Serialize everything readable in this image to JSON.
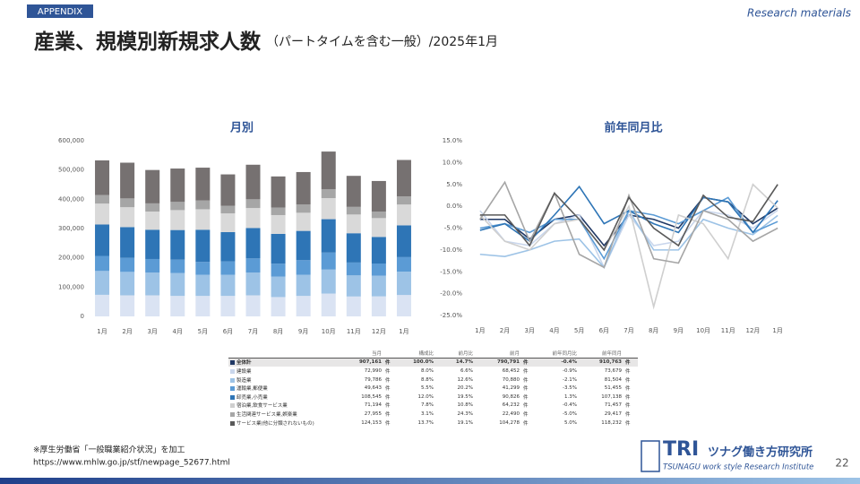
{
  "header": {
    "tag": "APPENDIX",
    "source": "Research materials",
    "title": "産業、規模別新規求人数",
    "subtitle": "（パートタイムを含む一般）/2025年1月"
  },
  "chart_data": [
    {
      "type": "bar",
      "stacked": true,
      "title": "月別",
      "categories": [
        "1月",
        "2月",
        "3月",
        "4月",
        "5月",
        "6月",
        "7月",
        "8月",
        "9月",
        "10月",
        "11月",
        "12月",
        "1月"
      ],
      "series": [
        {
          "color": "#dae3f3",
          "values": [
            73679,
            72000,
            72000,
            70000,
            70000,
            70000,
            72000,
            66000,
            70000,
            78000,
            68000,
            68452,
            72990
          ]
        },
        {
          "color": "#9dc3e6",
          "values": [
            81504,
            80000,
            78000,
            78000,
            72000,
            72000,
            78000,
            70000,
            72000,
            82000,
            72000,
            70880,
            79786
          ]
        },
        {
          "color": "#5b9bd5",
          "values": [
            51455,
            48000,
            46000,
            46000,
            44000,
            46000,
            48000,
            44000,
            50000,
            58000,
            44000,
            41299,
            49643
          ]
        },
        {
          "color": "#2e75b6",
          "values": [
            107138,
            105000,
            100000,
            101000,
            110000,
            100000,
            104000,
            102000,
            100000,
            114000,
            100000,
            90826,
            108545
          ]
        },
        {
          "color": "#d9d9d9",
          "values": [
            71457,
            68000,
            62000,
            68000,
            70000,
            64000,
            68000,
            64000,
            62000,
            72000,
            64000,
            64232,
            71194
          ]
        },
        {
          "color": "#a6a6a6",
          "values": [
            29417,
            30000,
            28000,
            28000,
            30000,
            26000,
            30000,
            26000,
            28000,
            30000,
            26000,
            22490,
            27955
          ]
        },
        {
          "color": "#767171",
          "values": [
            118232,
            122000,
            114000,
            114000,
            112000,
            107000,
            118000,
            106000,
            111000,
            129000,
            106000,
            104278,
            124153
          ]
        }
      ],
      "ylim": [
        0,
        600000
      ],
      "yticks": [
        0,
        {
          "value": 100000,
          "label": "100,000"
        },
        {
          "value": 200000,
          "label": "200,000"
        },
        {
          "value": 300000,
          "label": "300,000"
        },
        {
          "value": 400000,
          "label": "400,000"
        },
        {
          "value": 500000,
          "label": "500,000"
        },
        {
          "value": 600000,
          "label": "600,000"
        }
      ],
      "grid": false
    },
    {
      "type": "line",
      "title": "前年同月比",
      "categories": [
        "1月",
        "2月",
        "3月",
        "4月",
        "5月",
        "6月",
        "7月",
        "8月",
        "9月",
        "10月",
        "11月",
        "12月",
        "1月"
      ],
      "series": [
        {
          "name": "全体計",
          "color": "#203864",
          "values": [
            -3,
            -3,
            -7.5,
            -3,
            -2,
            -9,
            -2,
            -3,
            -5,
            2,
            1,
            -4,
            -0.4
          ]
        },
        {
          "name": "建設業",
          "color": "#c9d6ec",
          "values": [
            -1,
            -8,
            -9,
            -4,
            -2,
            -14,
            -2,
            -9,
            -8,
            -1,
            -2,
            -5,
            -0.9
          ]
        },
        {
          "name": "製造業",
          "color": "#9dc3e6",
          "values": [
            -11,
            -11.5,
            -10,
            -8,
            -7.5,
            -14,
            -1,
            -10,
            -10,
            -3,
            -5,
            -6.5,
            -2.1
          ]
        },
        {
          "name": "運輸業,郵便業",
          "color": "#5b9bd5",
          "values": [
            -5,
            -4,
            -6,
            -3,
            -3,
            -12,
            -1,
            -2,
            -4,
            -1,
            2,
            -6,
            -3.5
          ]
        },
        {
          "name": "卸売業,小売業",
          "color": "#2e75b6",
          "values": [
            -5.5,
            -4,
            -8,
            -2,
            4.5,
            -4,
            -1,
            -4,
            -6,
            2,
            1,
            -6,
            1.3
          ]
        },
        {
          "name": "宿泊業,飲食サービス業",
          "color": "#cfcfcf",
          "values": [
            -2,
            -8,
            -10,
            -4,
            -3,
            -10,
            0,
            -23,
            -2,
            -4,
            -12,
            5,
            -0.4
          ]
        },
        {
          "name": "生活関連サービス業,娯楽業",
          "color": "#a6a6a6",
          "values": [
            -3,
            5.5,
            -8,
            3,
            -11,
            -14,
            2.5,
            -12,
            -13,
            -1,
            -3,
            -8,
            -5
          ]
        },
        {
          "name": "サービス業(他に分類されないもの)",
          "color": "#595959",
          "values": [
            -2,
            -2,
            -9,
            3,
            -3,
            -10,
            2,
            -5,
            -9,
            2.5,
            -2.5,
            -3.5,
            5
          ]
        }
      ],
      "ylim": [
        -25,
        15
      ],
      "yticks": [
        {
          "value": -25,
          "label": "-25.0%"
        },
        {
          "value": -20,
          "label": "-20.0%"
        },
        {
          "value": -15,
          "label": "-15.0%"
        },
        {
          "value": -10,
          "label": "-10.0%"
        },
        {
          "value": -5,
          "label": "-5.0%"
        },
        {
          "value": 0,
          "label": "0.0%"
        },
        {
          "value": 5,
          "label": "5.0%"
        },
        {
          "value": 10,
          "label": "10.0%"
        },
        {
          "value": 15,
          "label": "15.0%"
        }
      ],
      "grid": false
    }
  ],
  "table": {
    "columns": [
      "当月",
      "構成比",
      "前月比",
      "前月",
      "前年同月比",
      "前年同月"
    ],
    "unit": "件",
    "rows": [
      [
        "907,161",
        "100.0%",
        "14.7%",
        "790,791",
        "-0.4%",
        "910,763"
      ],
      [
        "72,990",
        "8.0%",
        "6.6%",
        "68,452",
        "-0.9%",
        "73,679"
      ],
      [
        "79,786",
        "8.8%",
        "12.6%",
        "70,880",
        "-2.1%",
        "81,504"
      ],
      [
        "49,643",
        "5.5%",
        "20.2%",
        "41,299",
        "-3.5%",
        "51,455"
      ],
      [
        "108,545",
        "12.0%",
        "19.5%",
        "90,826",
        "1.3%",
        "107,138"
      ],
      [
        "71,194",
        "7.8%",
        "10.8%",
        "64,232",
        "-0.4%",
        "71,457"
      ],
      [
        "27,955",
        "3.1%",
        "24.3%",
        "22,490",
        "-5.0%",
        "29,417"
      ],
      [
        "124,153",
        "13.7%",
        "19.1%",
        "104,278",
        "5.0%",
        "118,232"
      ]
    ]
  },
  "footer": {
    "note": "※厚生労働省「一般職業紹介状況」を加工",
    "url": "https://www.mhlw.go.jp/stf/newpage_52677.html",
    "page": "22"
  },
  "logo": {
    "mark": "TRI",
    "name": "ツナグ働き方研究所",
    "english": "TSUNAGU work style Research Institute"
  }
}
